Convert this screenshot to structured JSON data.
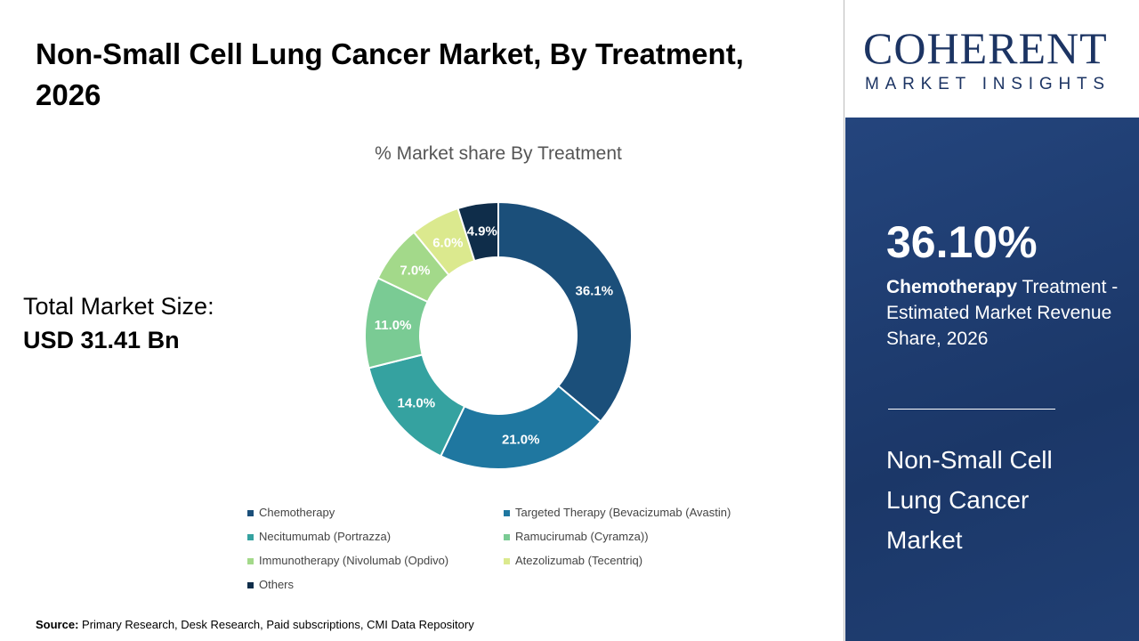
{
  "header": {
    "title": "Non-Small Cell Lung Cancer Market, By Treatment, 2026"
  },
  "total": {
    "label": "Total Market Size:",
    "value": "USD 31.41 Bn"
  },
  "logo": {
    "main": "COHERENT",
    "sub": "MARKET INSIGHTS"
  },
  "panel": {
    "percent": "36.10%",
    "highlight": "Chemotherapy",
    "desc": " Treatment - Estimated Market Revenue Share, 2026",
    "market": "Non-Small Cell Lung Cancer Market"
  },
  "source": {
    "label": "Source:",
    "text": " Primary Research, Desk Research, Paid subscriptions, CMI Data Repository"
  },
  "chart_data": {
    "type": "pie",
    "donut": true,
    "title": "% Market share By Treatment",
    "legend_position": "bottom",
    "categories": [
      "Chemotherapy",
      "Targeted Therapy (Bevacizumab (Avastin)",
      "Necitumumab (Portrazza)",
      "Ramucirumab (Cyramza))",
      "Immunotherapy (Nivolumab (Opdivo)",
      "Atezolizumab (Tecentriq)",
      "Others"
    ],
    "values": [
      36.1,
      21.0,
      14.0,
      11.0,
      7.0,
      6.0,
      4.9
    ],
    "labels": [
      "36.1%",
      "21.0%",
      "14.0%",
      "11.0%",
      "7.0%",
      "6.0%",
      "4.9%"
    ],
    "colors": [
      "#1b4f7a",
      "#1f77a0",
      "#35a2a0",
      "#7acb94",
      "#a3d98a",
      "#dbe98e",
      "#0f2d4a"
    ],
    "label_colors": [
      "#fff",
      "#fff",
      "#fff",
      "#fff",
      "#fff",
      "#fff",
      "#fff"
    ]
  }
}
